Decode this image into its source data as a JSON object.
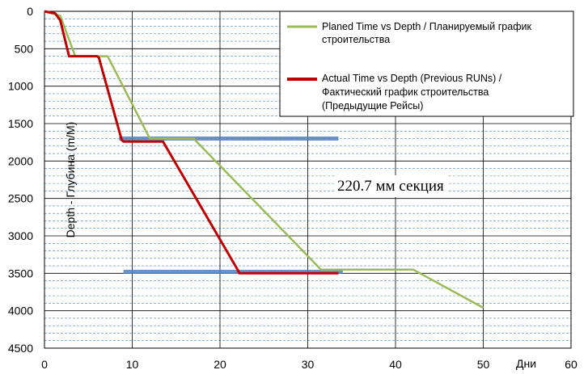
{
  "chart_data": {
    "type": "line",
    "xlabel": "Дни",
    "ylabel": "Depth - Глубина (m/M)",
    "xlim": [
      0,
      60
    ],
    "ylim": [
      0,
      4500
    ],
    "y_inverted": true,
    "x_ticks": [
      "0",
      "10",
      "20",
      "30",
      "40",
      "50",
      "60"
    ],
    "y_ticks": [
      "0",
      "500",
      "1000",
      "1500",
      "2000",
      "2500",
      "3000",
      "3500",
      "4000",
      "4500"
    ],
    "grid": true,
    "legend_position": "top-right",
    "legend": [
      {
        "line1": "Planed Time vs Depth / Планируемый график",
        "line2": "строительства",
        "line3": ""
      },
      {
        "line1": "Actual Time vs Depth (Previous RUNs) /",
        "line2": "Фактический график строительства",
        "line3": "(Предыдущие Рейсы)"
      }
    ],
    "series": [
      {
        "color": "#9bbb59",
        "x": [
          0,
          1.5,
          1.8,
          3.5,
          7.2,
          12,
          17,
          31.5,
          42,
          50
        ],
        "y": [
          0,
          50,
          60,
          600,
          600,
          1700,
          1700,
          3450,
          3450,
          3960
        ]
      },
      {
        "color": "#c00000",
        "x": [
          0,
          0.6,
          1.2,
          1.8,
          2.8,
          6,
          6.2,
          8.8,
          9,
          10.5,
          13.5,
          22,
          22.2,
          33.5
        ],
        "y": [
          0,
          15,
          25,
          120,
          600,
          600,
          620,
          1720,
          1740,
          1740,
          1740,
          3450,
          3500,
          3500
        ]
      }
    ],
    "bands": [
      {
        "color": "#4f81bd",
        "x_start": 8.5,
        "x_end": 33.5,
        "y": 1700
      },
      {
        "color": "#4f81bd",
        "x_start": 9,
        "x_end": 34,
        "y": 3480
      }
    ],
    "annotations": [
      {
        "text": "220.7 мм секция",
        "x": 33,
        "y": 2320
      }
    ]
  }
}
